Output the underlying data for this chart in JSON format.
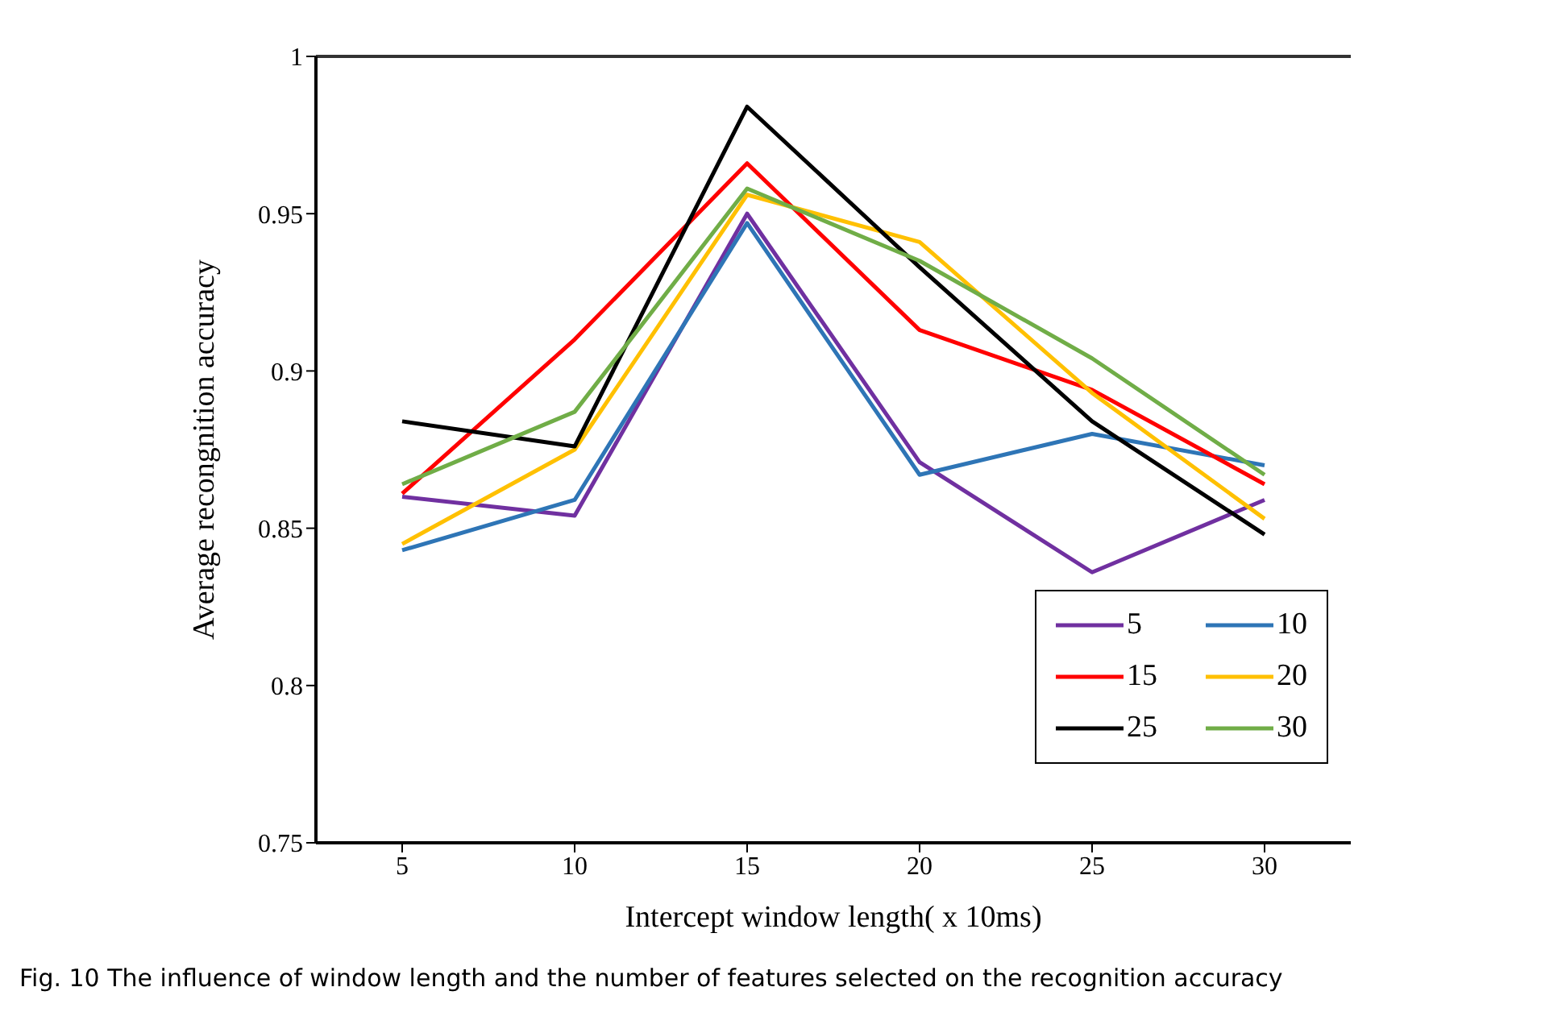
{
  "chart_data": {
    "type": "line",
    "xlabel": "Intercept window length( x 10ms)",
    "ylabel": "Average recongnition accuracy",
    "categories": [
      "5",
      "10",
      "15",
      "20",
      "25",
      "30"
    ],
    "series": [
      {
        "name": "5",
        "color": "#7030a0",
        "values": [
          0.86,
          0.854,
          0.95,
          0.871,
          0.836,
          0.859
        ]
      },
      {
        "name": "10",
        "color": "#2e75b6",
        "values": [
          0.843,
          0.859,
          0.947,
          0.867,
          0.88,
          0.87
        ]
      },
      {
        "name": "15",
        "color": "#ff0000",
        "values": [
          0.861,
          0.91,
          0.966,
          0.913,
          0.894,
          0.864
        ]
      },
      {
        "name": "20",
        "color": "#ffc000",
        "values": [
          0.845,
          0.875,
          0.956,
          0.941,
          0.893,
          0.853
        ]
      },
      {
        "name": "25",
        "color": "#000000",
        "values": [
          0.884,
          0.876,
          0.984,
          0.933,
          0.884,
          0.848
        ]
      },
      {
        "name": "30",
        "color": "#70ad47",
        "values": [
          0.864,
          0.887,
          0.958,
          0.935,
          0.904,
          0.867
        ]
      }
    ],
    "ylim": [
      0.75,
      1
    ],
    "yticks": [
      0.75,
      0.8,
      0.85,
      0.9,
      0.95,
      1
    ],
    "grid": false,
    "legend": "bottom right",
    "marker": "none",
    "line_style": "solid",
    "annotations": [
      "Fig. 10  The influence of window length and the number of features selected on the recognition accuracy"
    ]
  }
}
